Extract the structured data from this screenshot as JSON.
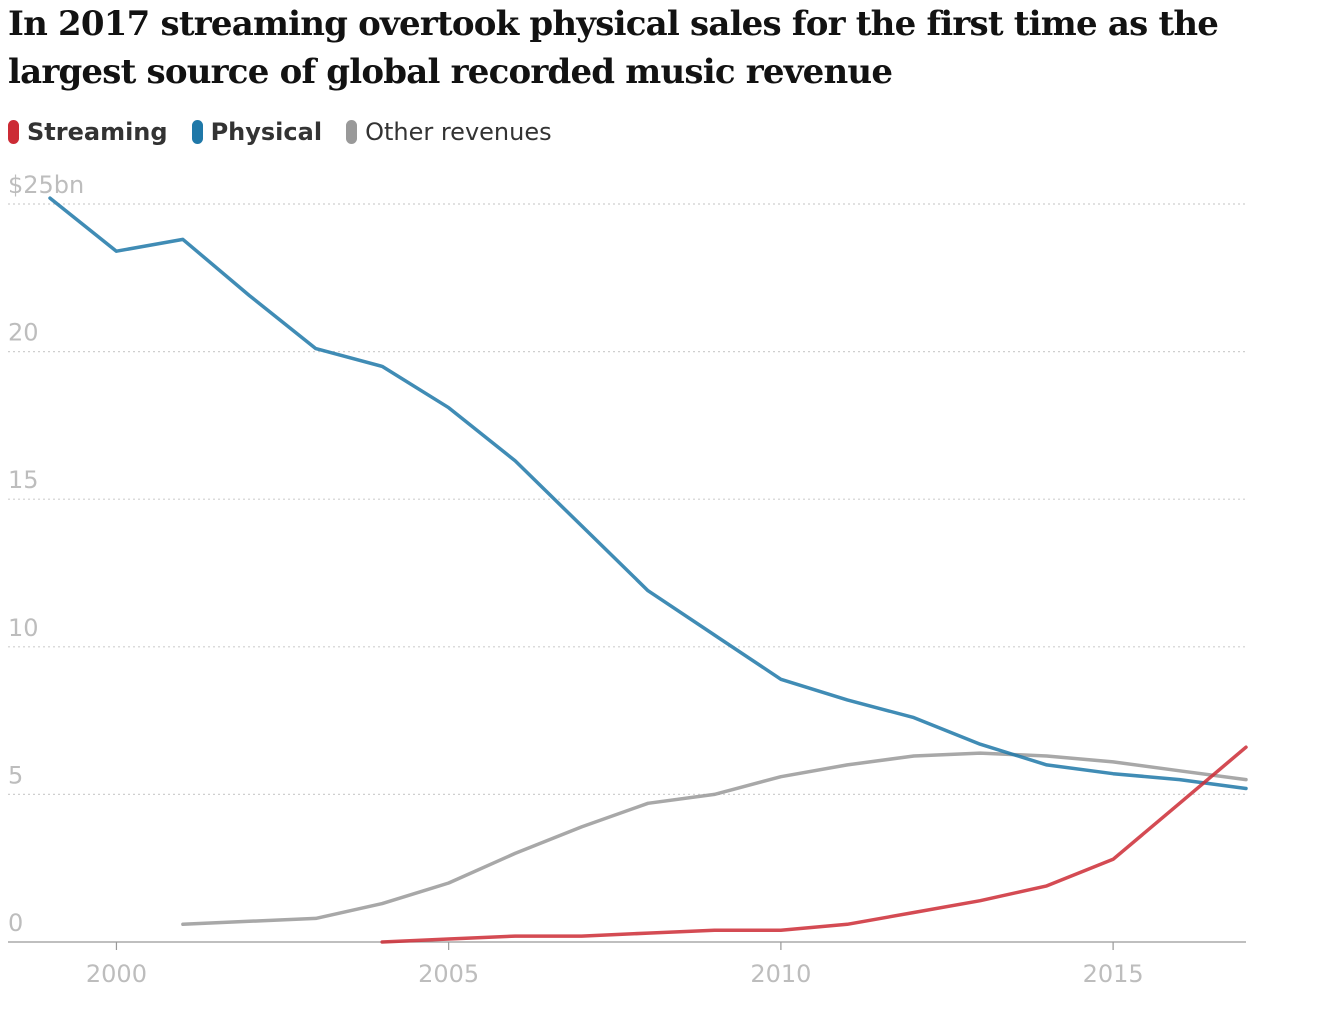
{
  "title": "In 2017 streaming overtook physical sales for the first time as the largest source of global recorded music revenue",
  "chart_data": {
    "type": "line",
    "title": "In 2017 streaming overtook physical sales for the first time as the largest source of global recorded music revenue",
    "xlabel": "",
    "ylabel": "",
    "xlim": [
      1999,
      2017
    ],
    "ylim": [
      0,
      25
    ],
    "grid": true,
    "legend_position": "top-left",
    "y_ticks": [
      {
        "value": 0,
        "label": "0"
      },
      {
        "value": 5,
        "label": "5"
      },
      {
        "value": 10,
        "label": "10"
      },
      {
        "value": 15,
        "label": "15"
      },
      {
        "value": 20,
        "label": "20"
      },
      {
        "value": 25,
        "label": "$25bn"
      }
    ],
    "x_ticks": [
      {
        "value": 2000,
        "label": "2000"
      },
      {
        "value": 2005,
        "label": "2005"
      },
      {
        "value": 2010,
        "label": "2010"
      },
      {
        "value": 2015,
        "label": "2015"
      }
    ],
    "series": [
      {
        "name": "Streaming",
        "color": "#cc2b35",
        "bold": true,
        "points": [
          [
            2004,
            0.0
          ],
          [
            2005,
            0.1
          ],
          [
            2006,
            0.2
          ],
          [
            2007,
            0.2
          ],
          [
            2008,
            0.3
          ],
          [
            2009,
            0.4
          ],
          [
            2010,
            0.4
          ],
          [
            2011,
            0.6
          ],
          [
            2012,
            1.0
          ],
          [
            2013,
            1.4
          ],
          [
            2014,
            1.9
          ],
          [
            2015,
            2.8
          ],
          [
            2016,
            4.7
          ],
          [
            2017,
            6.6
          ]
        ]
      },
      {
        "name": "Physical",
        "color": "#1f78a8",
        "bold": true,
        "points": [
          [
            1999,
            25.2
          ],
          [
            2000,
            23.4
          ],
          [
            2001,
            23.8
          ],
          [
            2002,
            21.9
          ],
          [
            2003,
            20.1
          ],
          [
            2004,
            19.5
          ],
          [
            2005,
            18.1
          ],
          [
            2006,
            16.3
          ],
          [
            2007,
            14.1
          ],
          [
            2008,
            11.9
          ],
          [
            2009,
            10.4
          ],
          [
            2010,
            8.9
          ],
          [
            2011,
            8.2
          ],
          [
            2012,
            7.6
          ],
          [
            2013,
            6.7
          ],
          [
            2014,
            6.0
          ],
          [
            2015,
            5.7
          ],
          [
            2016,
            5.5
          ],
          [
            2017,
            5.2
          ]
        ]
      },
      {
        "name": "Other revenues",
        "color": "#999999",
        "bold": false,
        "points": [
          [
            2001,
            0.6
          ],
          [
            2002,
            0.7
          ],
          [
            2003,
            0.8
          ],
          [
            2004,
            1.3
          ],
          [
            2005,
            2.0
          ],
          [
            2006,
            3.0
          ],
          [
            2007,
            3.9
          ],
          [
            2008,
            4.7
          ],
          [
            2009,
            5.0
          ],
          [
            2010,
            5.6
          ],
          [
            2011,
            6.0
          ],
          [
            2012,
            6.3
          ],
          [
            2013,
            6.4
          ],
          [
            2014,
            6.3
          ],
          [
            2015,
            6.1
          ],
          [
            2016,
            5.8
          ],
          [
            2017,
            5.5
          ]
        ]
      }
    ]
  }
}
